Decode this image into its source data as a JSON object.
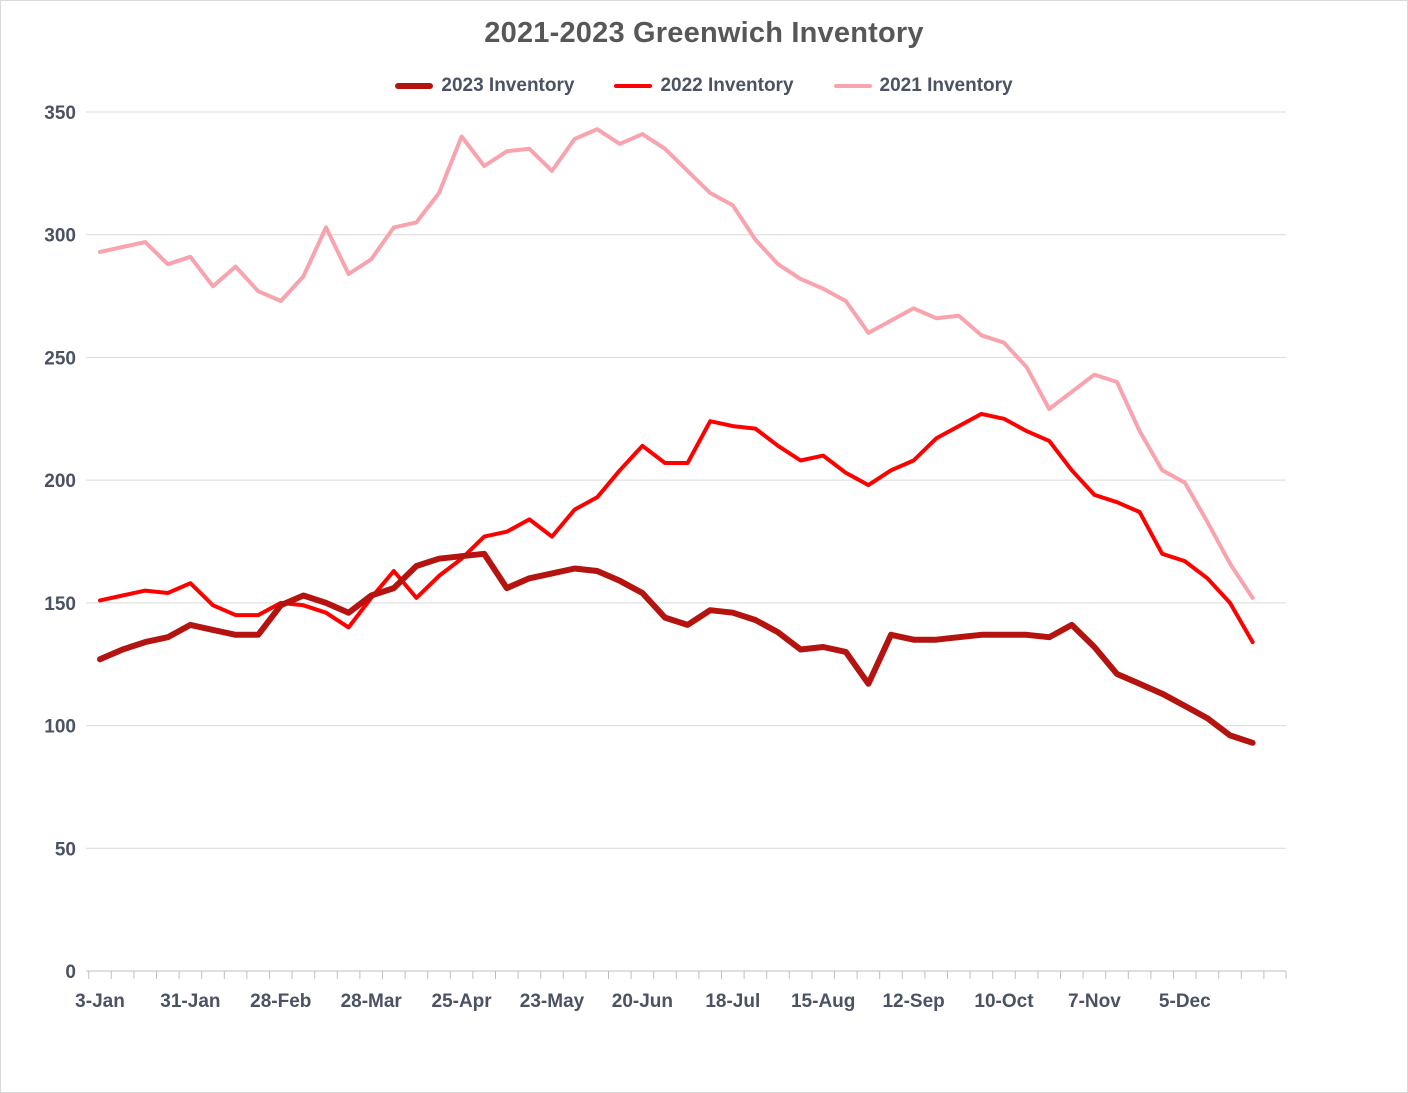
{
  "colors": {
    "series_2023": "#B41310",
    "series_2022": "#FF0000",
    "series_2021": "#F8A3AD",
    "gridline": "#D9D9D9",
    "axis_line": "#BFBFBF",
    "text": "#4A5263",
    "title_text": "#575757"
  },
  "chart_data": {
    "type": "line",
    "title": "2021-2023 Greenwich Inventory",
    "xlabel": "",
    "ylabel": "",
    "ylim": [
      0,
      350
    ],
    "y_ticks": [
      0,
      50,
      100,
      150,
      200,
      250,
      300,
      350
    ],
    "grid": "horizontal-only",
    "legend_position": "top-center",
    "n_points": 52,
    "x_unit": "weekly dates, labeled every 4 weeks",
    "x_tick_labels": [
      "3-Jan",
      "31-Jan",
      "28-Feb",
      "28-Mar",
      "25-Apr",
      "23-May",
      "20-Jun",
      "18-Jul",
      "15-Aug",
      "12-Sep",
      "10-Oct",
      "7-Nov",
      "5-Dec"
    ],
    "series": [
      {
        "name": "2023 Inventory",
        "color": "#B41310",
        "stroke_width": 6,
        "values": [
          127,
          131,
          134,
          136,
          141,
          139,
          137,
          137,
          149,
          153,
          150,
          146,
          153,
          156,
          165,
          168,
          169,
          170,
          156,
          160,
          162,
          164,
          163,
          159,
          154,
          144,
          141,
          147,
          146,
          143,
          138,
          131,
          132,
          130,
          117,
          137,
          135,
          135,
          136,
          137,
          137,
          137,
          136,
          141,
          132,
          121,
          117,
          113,
          108,
          103,
          96,
          93
        ]
      },
      {
        "name": "2022 Inventory",
        "color": "#FF0000",
        "stroke_width": 4,
        "values": [
          151,
          153,
          155,
          154,
          158,
          149,
          145,
          145,
          150,
          149,
          146,
          140,
          152,
          163,
          152,
          161,
          168,
          177,
          179,
          184,
          177,
          188,
          193,
          204,
          214,
          207,
          207,
          224,
          222,
          221,
          214,
          208,
          210,
          203,
          198,
          204,
          208,
          217,
          222,
          227,
          225,
          220,
          216,
          204,
          194,
          191,
          187,
          170,
          167,
          160,
          150,
          134
        ]
      },
      {
        "name": "2021 Inventory",
        "color": "#F8A3AD",
        "stroke_width": 4,
        "values": [
          293,
          295,
          297,
          288,
          291,
          279,
          287,
          277,
          273,
          283,
          303,
          284,
          290,
          303,
          305,
          317,
          340,
          328,
          334,
          335,
          326,
          339,
          343,
          337,
          341,
          335,
          326,
          317,
          312,
          298,
          288,
          282,
          278,
          273,
          260,
          265,
          270,
          266,
          267,
          259,
          256,
          246,
          229,
          236,
          243,
          240,
          220,
          204,
          199,
          183,
          166,
          152
        ]
      }
    ]
  }
}
